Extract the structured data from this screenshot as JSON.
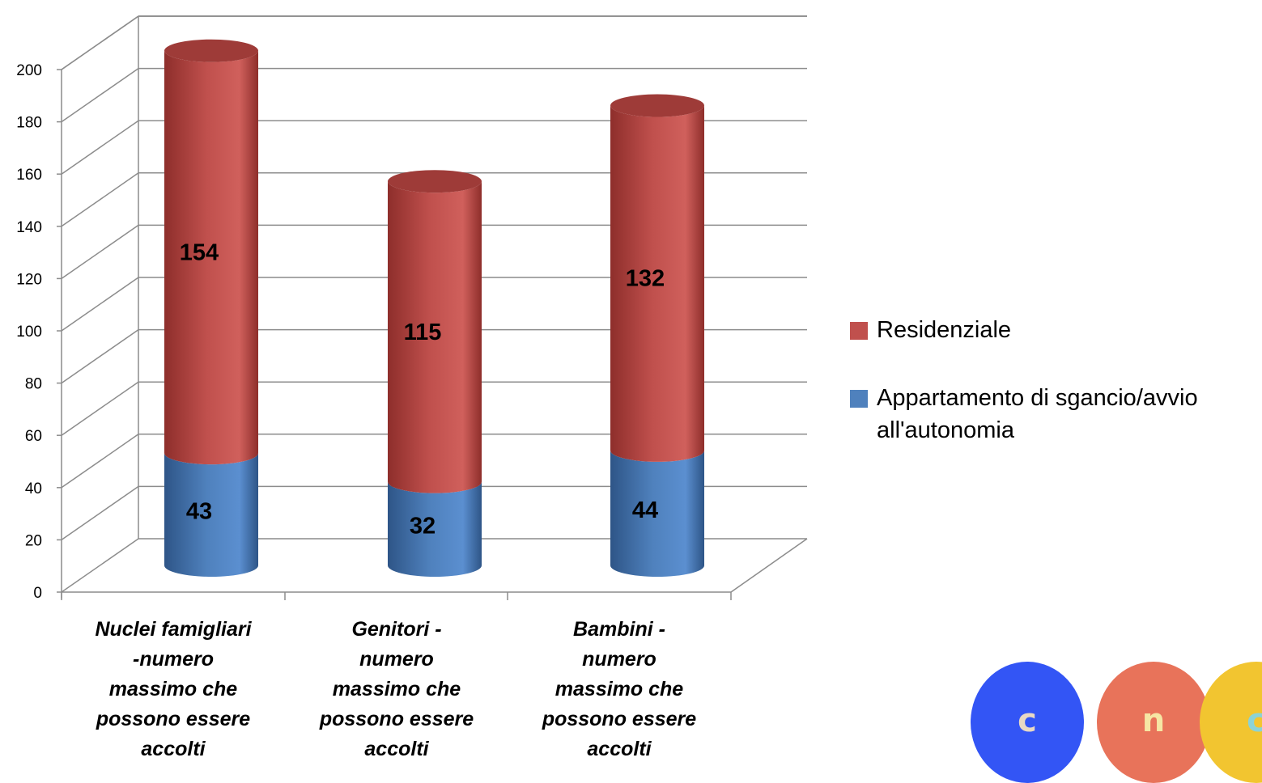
{
  "chart_data": {
    "type": "bar",
    "style": "stacked 3d cylinder",
    "categories": [
      "Nuclei famigliari -numero massimo che possono essere accolti",
      "Genitori - numero massimo che possono essere accolti",
      "Bambini - numero massimo che possono essere accolti"
    ],
    "category_lines": [
      [
        "Nuclei famigliari",
        "-numero",
        "massimo che",
        "possono essere",
        "accolti"
      ],
      [
        "Genitori -",
        "numero",
        "massimo che",
        "possono essere",
        "accolti"
      ],
      [
        "Bambini -",
        "numero",
        "massimo che",
        "possono essere",
        "accolti"
      ]
    ],
    "series": [
      {
        "name": "Appartamento di sgancio/avvio all'autonomia",
        "values": [
          43,
          32,
          44
        ],
        "color": "#4F81BD"
      },
      {
        "name": "Residenziale",
        "values": [
          154,
          115,
          132
        ],
        "color": "#C0504D"
      }
    ],
    "legend_entries": [
      {
        "lines": [
          "Residenziale"
        ],
        "color": "#C0504D"
      },
      {
        "lines": [
          "Appartamento di sgancio/avvio",
          "all'autonomia"
        ],
        "color": "#4F81BD"
      }
    ],
    "data_labels": true,
    "yticks": [
      "0",
      "20",
      "40",
      "60",
      "80",
      "100",
      "120",
      "140",
      "160",
      "180",
      "200"
    ],
    "ylim": [
      0,
      200
    ],
    "grid": true,
    "legend_position": "right"
  },
  "logo": {
    "letters": [
      "c",
      "n",
      "c"
    ],
    "colors": [
      "#3355F5",
      "#E8735A",
      "#F2C530"
    ]
  }
}
